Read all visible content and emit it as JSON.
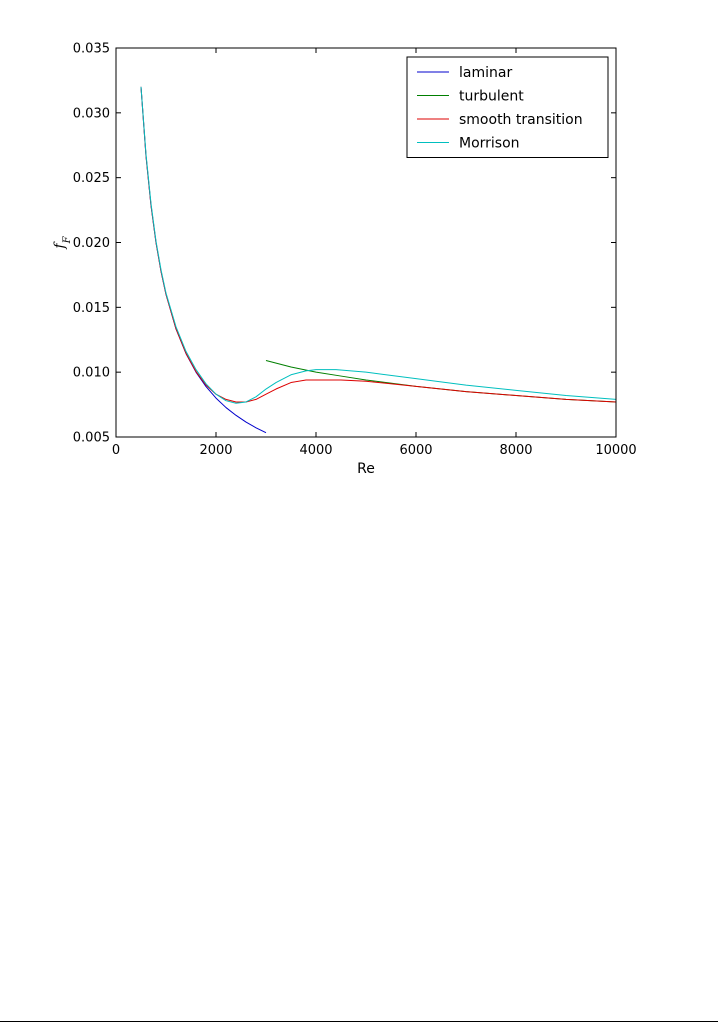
{
  "chart_data": {
    "type": "line",
    "xlabel": "Re",
    "ylabel": "f_F",
    "xlim": [
      0,
      10000
    ],
    "ylim": [
      0.005,
      0.035
    ],
    "xticks": [
      "0",
      "2000",
      "4000",
      "6000",
      "8000",
      "10000"
    ],
    "xtick_values": [
      0,
      2000,
      4000,
      6000,
      8000,
      10000
    ],
    "yticks": [
      "0.005",
      "0.010",
      "0.015",
      "0.020",
      "0.025",
      "0.030",
      "0.035"
    ],
    "ytick_values": [
      0.005,
      0.01,
      0.015,
      0.02,
      0.025,
      0.03,
      0.035
    ],
    "grid": false,
    "legend_position": "top-right",
    "series": [
      {
        "name": "laminar",
        "color": "#0000cc",
        "x": [
          500,
          600,
          700,
          800,
          900,
          1000,
          1200,
          1400,
          1600,
          1800,
          2000,
          2200,
          2400,
          2600,
          2800,
          3000
        ],
        "y": [
          0.032,
          0.02667,
          0.02286,
          0.02,
          0.01778,
          0.016,
          0.01333,
          0.01143,
          0.01,
          0.00889,
          0.008,
          0.00727,
          0.00667,
          0.00615,
          0.00571,
          0.00533
        ]
      },
      {
        "name": "turbulent",
        "color": "#007f00",
        "x": [
          3000,
          3500,
          4000,
          4500,
          5000,
          6000,
          7000,
          8000,
          9000,
          10000
        ],
        "y": [
          0.0109,
          0.0104,
          0.01,
          0.0097,
          0.0094,
          0.0089,
          0.0085,
          0.0082,
          0.0079,
          0.0077
        ]
      },
      {
        "name": "smooth transition",
        "color": "#dd0000",
        "x": [
          500,
          600,
          700,
          800,
          900,
          1000,
          1200,
          1400,
          1600,
          1800,
          2000,
          2200,
          2400,
          2600,
          2800,
          3000,
          3200,
          3500,
          3800,
          4000,
          4500,
          5000,
          6000,
          7000,
          8000,
          9000,
          10000
        ],
        "y": [
          0.032,
          0.02667,
          0.02286,
          0.02,
          0.01778,
          0.016,
          0.01334,
          0.01145,
          0.01005,
          0.009,
          0.0083,
          0.0079,
          0.0077,
          0.0077,
          0.0079,
          0.0083,
          0.0087,
          0.0092,
          0.0094,
          0.0094,
          0.0094,
          0.0093,
          0.0089,
          0.0085,
          0.0082,
          0.0079,
          0.0077
        ]
      },
      {
        "name": "Morrison",
        "color": "#00bfbf",
        "x": [
          500,
          600,
          700,
          800,
          900,
          1000,
          1200,
          1400,
          1600,
          1800,
          2000,
          2200,
          2400,
          2600,
          2800,
          3000,
          3200,
          3500,
          3800,
          4000,
          4400,
          5000,
          6000,
          7000,
          8000,
          9000,
          10000
        ],
        "y": [
          0.032,
          0.0268,
          0.023,
          0.0201,
          0.0179,
          0.0161,
          0.0135,
          0.0116,
          0.0102,
          0.0091,
          0.0083,
          0.0078,
          0.0076,
          0.0077,
          0.0081,
          0.0087,
          0.0092,
          0.0098,
          0.0101,
          0.0102,
          0.0102,
          0.01,
          0.0095,
          0.009,
          0.0086,
          0.0082,
          0.0079
        ]
      }
    ]
  }
}
